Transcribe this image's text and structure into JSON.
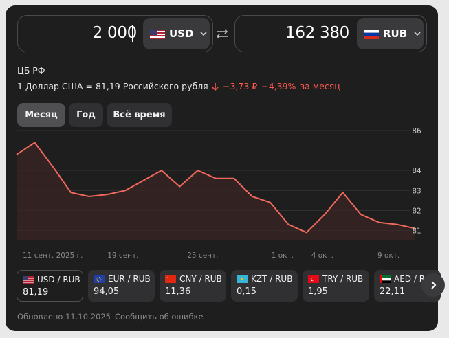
{
  "converter": {
    "from_amount": "2 000",
    "from_currency": "USD",
    "to_amount": "162 380",
    "to_currency": "RUB"
  },
  "source": "ЦБ РФ",
  "rate_text": "1 Доллар США = 81,19 Российского рубля",
  "change": {
    "abs": "−3,73 ₽",
    "pct": "−4,39%",
    "period": "за месяц",
    "color": "#ff5a4e"
  },
  "tabs": [
    {
      "label": "Месяц",
      "active": true
    },
    {
      "label": "Год",
      "active": false
    },
    {
      "label": "Всё время",
      "active": false
    }
  ],
  "chart_data": {
    "type": "area",
    "series": [
      {
        "values": [
          84.8,
          85.4,
          84.2,
          82.9,
          82.7,
          82.8,
          83.0,
          83.5,
          84.0,
          83.2,
          84.0,
          83.6,
          83.6,
          82.7,
          82.4,
          81.3,
          80.9,
          81.8,
          82.9,
          81.8,
          81.4,
          81.3,
          81.1
        ]
      }
    ],
    "x_ticks": [
      "11 сент. 2025 г.",
      "19 сент.",
      "25 сент.",
      "1 окт.",
      "4 окт.",
      "9 окт."
    ],
    "y_ticks": [
      "84",
      "83",
      "82",
      "81"
    ],
    "y_top_label": "86",
    "ylim": [
      80.5,
      86
    ],
    "line_color": "#f06a5c",
    "fill_color": "#3a2424",
    "grid": true
  },
  "pairs": [
    {
      "flag": "us",
      "pair": "USD / RUB",
      "value": "81,19"
    },
    {
      "flag": "eu",
      "pair": "EUR / RUB",
      "value": "94,05"
    },
    {
      "flag": "cn",
      "pair": "CNY / RUB",
      "value": "11,36"
    },
    {
      "flag": "kz",
      "pair": "KZT / RUB",
      "value": "0,15"
    },
    {
      "flag": "tr",
      "pair": "TRY / RUB",
      "value": "1,95"
    },
    {
      "flag": "ae",
      "pair": "AED / R",
      "value": "22,11"
    }
  ],
  "footer": {
    "updated": "Обновлено 11.10.2025",
    "report": "Сообщить об ошибке"
  }
}
